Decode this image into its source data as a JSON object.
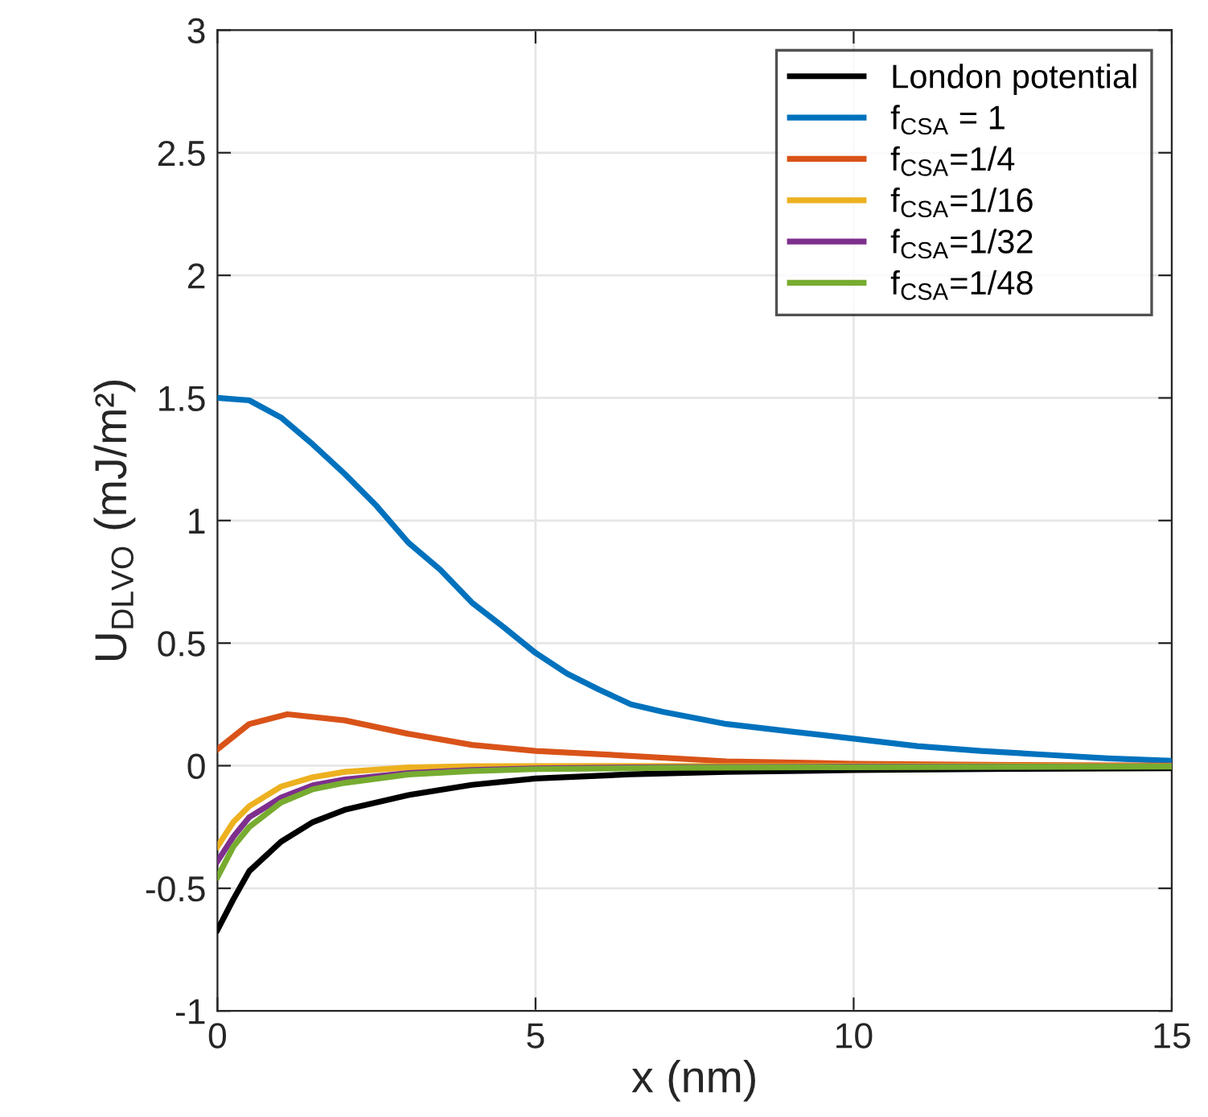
{
  "chart_data": {
    "type": "line",
    "xlabel": "x (nm)",
    "ylabel": "U$_{DLVO}$ (mJ/m²)",
    "xlim": [
      0,
      15
    ],
    "xticks": [
      0,
      5,
      10,
      15
    ],
    "ylim": [
      -1,
      3
    ],
    "yticks": [
      -1,
      -0.5,
      0,
      0.5,
      1,
      1.5,
      2,
      2.5,
      3
    ],
    "grid": true,
    "legend": "top right",
    "line_style": "solid",
    "marker": "none",
    "series": [
      {
        "name": "London potential",
        "color": "#000000",
        "x": [
          0,
          0.25,
          0.5,
          1,
          1.5,
          2,
          3,
          4,
          5,
          6.5,
          8,
          10,
          12.5,
          15
        ],
        "values": [
          -0.67,
          -0.545,
          -0.43,
          -0.31,
          -0.23,
          -0.18,
          -0.12,
          -0.078,
          -0.052,
          -0.035,
          -0.025,
          -0.018,
          -0.013,
          -0.01
        ]
      },
      {
        "name": "f$_{CSA}$ = 1",
        "color": "#0072bd",
        "x": [
          0,
          0.5,
          1,
          1.5,
          2,
          2.5,
          3,
          3.5,
          4,
          4.5,
          5,
          5.5,
          6,
          6.5,
          7,
          8,
          9,
          10,
          11,
          12,
          13,
          14,
          15
        ],
        "values": [
          1.5,
          1.49,
          1.42,
          1.31,
          1.19,
          1.06,
          0.91,
          0.8,
          0.665,
          0.565,
          0.46,
          0.375,
          0.31,
          0.25,
          0.22,
          0.17,
          0.14,
          0.11,
          0.08,
          0.06,
          0.045,
          0.03,
          0.02
        ]
      },
      {
        "name": "f$_{CSA}$=1/4",
        "color": "#d95319",
        "x": [
          0,
          0.5,
          1.1,
          2,
          3,
          4,
          5,
          6.5,
          8,
          10,
          12.5,
          15
        ],
        "values": [
          0.067,
          0.17,
          0.21,
          0.185,
          0.13,
          0.085,
          0.06,
          0.04,
          0.018,
          0.008,
          0.003,
          0
        ]
      },
      {
        "name": "f$_{CSA}$=1/16",
        "color": "#edb120",
        "x": [
          0,
          0.25,
          0.5,
          1,
          1.5,
          2,
          3,
          4,
          6,
          10,
          15
        ],
        "values": [
          -0.33,
          -0.23,
          -0.165,
          -0.085,
          -0.047,
          -0.025,
          -0.007,
          -0.002,
          -0.001,
          -0.001,
          -0.001
        ]
      },
      {
        "name": "f$_{CSA}$=1/32",
        "color": "#7e2f8e",
        "x": [
          0,
          0.25,
          0.5,
          1,
          1.5,
          2,
          3,
          4,
          5,
          7,
          10,
          15
        ],
        "values": [
          -0.39,
          -0.29,
          -0.21,
          -0.13,
          -0.08,
          -0.056,
          -0.03,
          -0.018,
          -0.011,
          -0.006,
          -0.004,
          -0.003
        ]
      },
      {
        "name": "f$_{CSA}$=1/48",
        "color": "#77ac30",
        "x": [
          0,
          0.25,
          0.5,
          1,
          1.5,
          2,
          3,
          4,
          5,
          7,
          10,
          15
        ],
        "values": [
          -0.455,
          -0.33,
          -0.25,
          -0.15,
          -0.096,
          -0.07,
          -0.036,
          -0.022,
          -0.014,
          -0.009,
          -0.006,
          -0.004
        ]
      }
    ]
  }
}
